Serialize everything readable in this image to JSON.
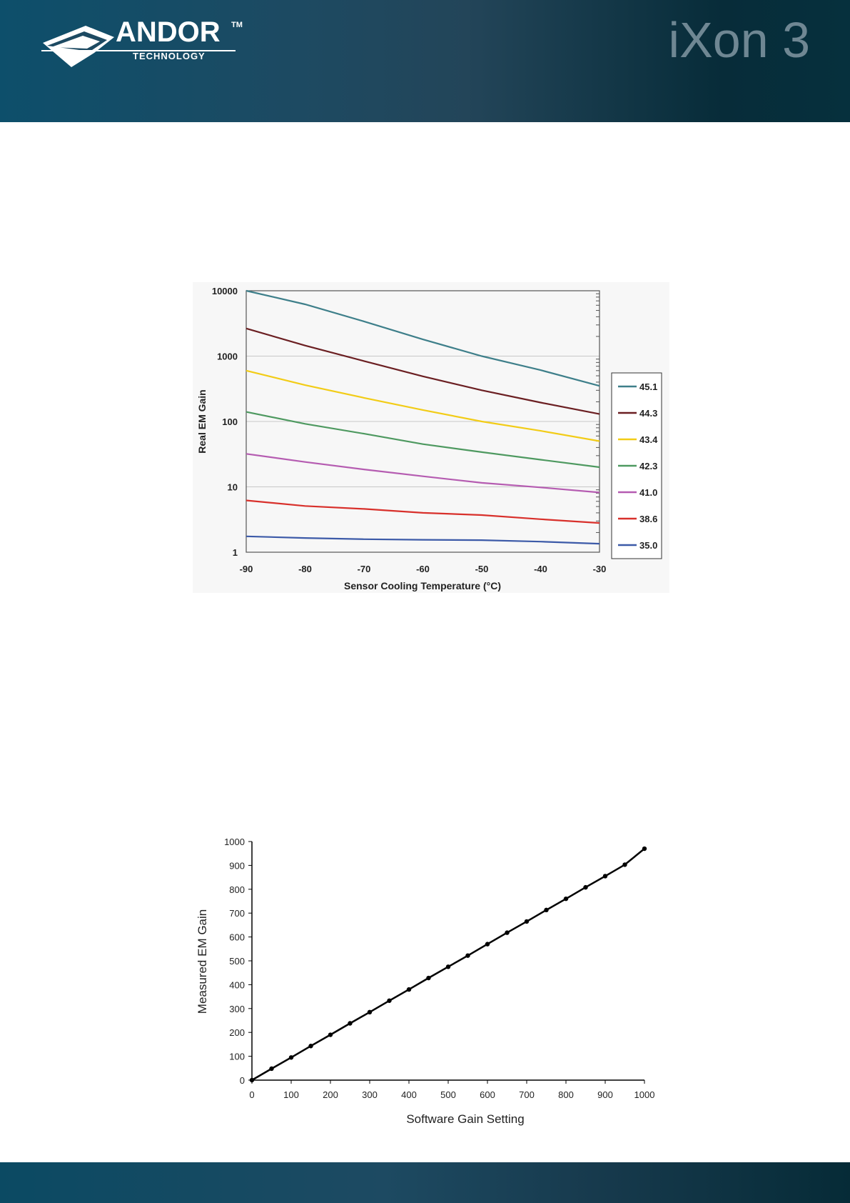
{
  "header": {
    "logo_text": "ANDOR",
    "logo_tm": "TM",
    "logo_subtext": "TECHNOLOGY",
    "product_title": "iXon 3",
    "colors": {
      "band": "#1d4a62",
      "logo": "#ffffff",
      "title": "#6f8793"
    }
  },
  "footer": {
    "color": "#0b4a63"
  },
  "chart_data": [
    {
      "type": "line",
      "title": "",
      "xlabel": "Sensor Cooling Temperature (°C)",
      "ylabel": "Real EM Gain",
      "xlim": [
        -90,
        -30
      ],
      "ylim": [
        1,
        10000
      ],
      "yscale": "log",
      "x_ticks": [
        "-90",
        "-80",
        "-70",
        "-60",
        "-50",
        "-40",
        "-30"
      ],
      "y_ticks": [
        "1",
        "10",
        "100",
        "1000",
        "10000"
      ],
      "grid": "horizontal",
      "legend_position": "right",
      "x": [
        -90,
        -80,
        -70,
        -60,
        -50,
        -40,
        -30
      ],
      "series": [
        {
          "name": "45.1",
          "color": "#3e7f8a",
          "values": [
            10500,
            6200,
            3400,
            1800,
            1000,
            610,
            350
          ]
        },
        {
          "name": "44.3",
          "color": "#6b1f22",
          "values": [
            2650,
            1450,
            840,
            490,
            300,
            195,
            130
          ]
        },
        {
          "name": "43.4",
          "color": "#f2cc17",
          "values": [
            600,
            360,
            230,
            150,
            100,
            72,
            50
          ]
        },
        {
          "name": "42.3",
          "color": "#4e9960",
          "values": [
            140,
            92,
            65,
            45,
            34,
            26,
            20
          ]
        },
        {
          "name": "41.0",
          "color": "#b55cb1",
          "values": [
            32,
            24,
            18.5,
            14.5,
            11.5,
            9.8,
            8.2
          ]
        },
        {
          "name": "38.6",
          "color": "#d8302b",
          "values": [
            6.2,
            5.1,
            4.6,
            4.0,
            3.7,
            3.2,
            2.8
          ]
        },
        {
          "name": "35.0",
          "color": "#3c5aa8",
          "values": [
            1.75,
            1.65,
            1.58,
            1.55,
            1.53,
            1.45,
            1.35
          ]
        }
      ]
    },
    {
      "type": "scatter",
      "title": "",
      "xlabel": "Software Gain Setting",
      "ylabel": "Measured EM Gain",
      "xlim": [
        0,
        1000
      ],
      "ylim": [
        0,
        1000
      ],
      "x_ticks": [
        "0",
        "100",
        "200",
        "300",
        "400",
        "500",
        "600",
        "700",
        "800",
        "900",
        "1000"
      ],
      "y_ticks": [
        "0",
        "100",
        "200",
        "300",
        "400",
        "500",
        "600",
        "700",
        "800",
        "900",
        "1000"
      ],
      "grid": false,
      "line": true,
      "color": "#000000",
      "series": [
        {
          "x": [
            0,
            50,
            100,
            150,
            200,
            250,
            300,
            350,
            400,
            450,
            500,
            550,
            600,
            650,
            700,
            750,
            800,
            850,
            900,
            950,
            1000
          ],
          "values": [
            0,
            48,
            95,
            143,
            190,
            238,
            285,
            333,
            380,
            428,
            475,
            522,
            570,
            618,
            665,
            713,
            760,
            808,
            855,
            903,
            970
          ]
        }
      ]
    }
  ]
}
